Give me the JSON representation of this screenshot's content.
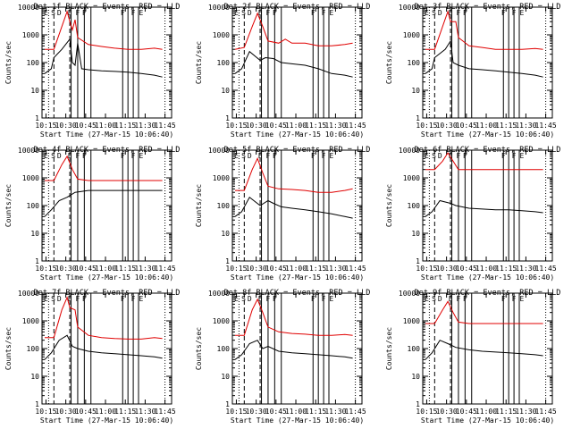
{
  "figure": {
    "shared": {
      "type": "line",
      "ylabel": "Counts/sec",
      "xlabel": "Start Time (27-Mar-15 10:06:40)",
      "x_ticks": [
        "10:15",
        "10:30",
        "10:45",
        "11:00",
        "11:15",
        "11:30",
        "11:45"
      ],
      "y_ticks": [
        "1",
        "10",
        "100",
        "1000",
        "10000"
      ],
      "xlim_minutes_from_start": [
        5,
        103
      ],
      "ylim": [
        1,
        10000
      ],
      "yscale": "log",
      "series_colors": {
        "events": "#000000",
        "lld": "#e00000"
      },
      "marker_letters": [
        "E",
        "S",
        "D",
        "F",
        "F",
        "F",
        "F",
        "F",
        "E"
      ]
    }
  },
  "chart_data": [
    {
      "title": "Det  1f BLACK = Events, RED = LLD",
      "type": "line",
      "series": [
        {
          "key": "events",
          "values": [
            [
              7,
              40
            ],
            [
              12,
              60
            ],
            [
              14,
              150
            ],
            [
              20,
              300
            ],
            [
              26,
              700
            ],
            [
              28,
              100
            ],
            [
              30,
              80
            ],
            [
              32,
              500
            ],
            [
              35,
              60
            ],
            [
              40,
              55
            ],
            [
              50,
              50
            ],
            [
              60,
              48
            ],
            [
              70,
              45
            ],
            [
              80,
              40
            ],
            [
              90,
              35
            ],
            [
              96,
              30
            ]
          ]
        },
        {
          "key": "lld",
          "values": [
            [
              7,
              300
            ],
            [
              14,
              300
            ],
            [
              20,
              2000
            ],
            [
              24,
              7000
            ],
            [
              26,
              3000
            ],
            [
              28,
              1500
            ],
            [
              30,
              3500
            ],
            [
              32,
              800
            ],
            [
              40,
              450
            ],
            [
              50,
              380
            ],
            [
              60,
              330
            ],
            [
              70,
              300
            ],
            [
              80,
              300
            ],
            [
              90,
              330
            ],
            [
              96,
              300
            ]
          ]
        }
      ]
    },
    {
      "title": "Det  2f BLACK = Events, RED = LLD",
      "type": "line",
      "series": [
        {
          "key": "events",
          "values": [
            [
              7,
              40
            ],
            [
              12,
              60
            ],
            [
              18,
              250
            ],
            [
              26,
              120
            ],
            [
              30,
              150
            ],
            [
              36,
              140
            ],
            [
              42,
              100
            ],
            [
              50,
              90
            ],
            [
              60,
              80
            ],
            [
              70,
              60
            ],
            [
              80,
              40
            ],
            [
              90,
              35
            ],
            [
              96,
              30
            ]
          ]
        },
        {
          "key": "lld",
          "values": [
            [
              7,
              300
            ],
            [
              14,
              350
            ],
            [
              20,
              2000
            ],
            [
              24,
              6000
            ],
            [
              28,
              2000
            ],
            [
              32,
              600
            ],
            [
              40,
              500
            ],
            [
              45,
              700
            ],
            [
              50,
              500
            ],
            [
              60,
              500
            ],
            [
              70,
              400
            ],
            [
              80,
              400
            ],
            [
              90,
              450
            ],
            [
              96,
              500
            ]
          ]
        }
      ]
    },
    {
      "title": "Det  3f BLACK = Events, RED = LLD",
      "type": "line",
      "series": [
        {
          "key": "events",
          "values": [
            [
              7,
              40
            ],
            [
              12,
              60
            ],
            [
              14,
              150
            ],
            [
              22,
              300
            ],
            [
              26,
              600
            ],
            [
              28,
              100
            ],
            [
              32,
              80
            ],
            [
              40,
              60
            ],
            [
              50,
              55
            ],
            [
              60,
              50
            ],
            [
              70,
              45
            ],
            [
              80,
              40
            ],
            [
              90,
              35
            ],
            [
              96,
              30
            ]
          ]
        },
        {
          "key": "lld",
          "values": [
            [
              7,
              300
            ],
            [
              14,
              300
            ],
            [
              20,
              2000
            ],
            [
              24,
              7000
            ],
            [
              26,
              3000
            ],
            [
              30,
              3000
            ],
            [
              32,
              800
            ],
            [
              40,
              400
            ],
            [
              50,
              350
            ],
            [
              60,
              300
            ],
            [
              70,
              300
            ],
            [
              80,
              300
            ],
            [
              90,
              320
            ],
            [
              96,
              300
            ]
          ]
        }
      ]
    },
    {
      "title": "Det  4f BLACK = Events, RED = LLD",
      "type": "line",
      "series": [
        {
          "key": "events",
          "values": [
            [
              7,
              40
            ],
            [
              12,
              70
            ],
            [
              18,
              150
            ],
            [
              24,
              200
            ],
            [
              30,
              300
            ],
            [
              40,
              350
            ],
            [
              50,
              350
            ],
            [
              60,
              350
            ],
            [
              70,
              350
            ],
            [
              80,
              350
            ],
            [
              90,
              350
            ],
            [
              96,
              350
            ]
          ]
        },
        {
          "key": "lld",
          "values": [
            [
              7,
              800
            ],
            [
              14,
              800
            ],
            [
              20,
              3000
            ],
            [
              24,
              6000
            ],
            [
              28,
              2000
            ],
            [
              32,
              900
            ],
            [
              40,
              800
            ],
            [
              50,
              800
            ],
            [
              60,
              800
            ],
            [
              70,
              800
            ],
            [
              80,
              800
            ],
            [
              90,
              800
            ],
            [
              96,
              800
            ]
          ]
        }
      ]
    },
    {
      "title": "Det  5f BLACK = Events, RED = LLD",
      "type": "line",
      "series": [
        {
          "key": "events",
          "values": [
            [
              7,
              40
            ],
            [
              12,
              60
            ],
            [
              18,
              200
            ],
            [
              26,
              100
            ],
            [
              32,
              150
            ],
            [
              36,
              120
            ],
            [
              42,
              90
            ],
            [
              50,
              80
            ],
            [
              60,
              70
            ],
            [
              70,
              60
            ],
            [
              80,
              50
            ],
            [
              90,
              40
            ],
            [
              96,
              35
            ]
          ]
        },
        {
          "key": "lld",
          "values": [
            [
              7,
              350
            ],
            [
              14,
              350
            ],
            [
              20,
              2000
            ],
            [
              24,
              5000
            ],
            [
              28,
              1500
            ],
            [
              32,
              500
            ],
            [
              40,
              400
            ],
            [
              50,
              380
            ],
            [
              60,
              350
            ],
            [
              70,
              300
            ],
            [
              80,
              300
            ],
            [
              90,
              350
            ],
            [
              96,
              400
            ]
          ]
        }
      ]
    },
    {
      "title": "Det  6f BLACK = Events, RED = LLD",
      "type": "line",
      "series": [
        {
          "key": "events",
          "values": [
            [
              7,
              40
            ],
            [
              12,
              60
            ],
            [
              18,
              150
            ],
            [
              26,
              120
            ],
            [
              30,
              100
            ],
            [
              40,
              80
            ],
            [
              50,
              75
            ],
            [
              60,
              70
            ],
            [
              70,
              70
            ],
            [
              80,
              65
            ],
            [
              90,
              60
            ],
            [
              96,
              55
            ]
          ]
        },
        {
          "key": "lld",
          "values": [
            [
              7,
              2000
            ],
            [
              14,
              2000
            ],
            [
              20,
              4000
            ],
            [
              24,
              8000
            ],
            [
              28,
              4000
            ],
            [
              32,
              2000
            ],
            [
              40,
              2000
            ],
            [
              50,
              2000
            ],
            [
              60,
              2000
            ],
            [
              70,
              2000
            ],
            [
              80,
              2000
            ],
            [
              90,
              2000
            ],
            [
              96,
              2000
            ]
          ]
        }
      ]
    },
    {
      "title": "Det  7f BLACK = Events, RED = LLD",
      "type": "line",
      "series": [
        {
          "key": "events",
          "values": [
            [
              7,
              40
            ],
            [
              12,
              70
            ],
            [
              18,
              200
            ],
            [
              24,
              300
            ],
            [
              28,
              120
            ],
            [
              32,
              100
            ],
            [
              40,
              80
            ],
            [
              50,
              70
            ],
            [
              60,
              65
            ],
            [
              70,
              60
            ],
            [
              80,
              55
            ],
            [
              90,
              50
            ],
            [
              96,
              45
            ]
          ]
        },
        {
          "key": "lld",
          "values": [
            [
              7,
              250
            ],
            [
              14,
              250
            ],
            [
              20,
              2500
            ],
            [
              24,
              7000
            ],
            [
              26,
              3000
            ],
            [
              30,
              2500
            ],
            [
              32,
              600
            ],
            [
              40,
              300
            ],
            [
              50,
              250
            ],
            [
              60,
              230
            ],
            [
              70,
              220
            ],
            [
              80,
              220
            ],
            [
              90,
              250
            ],
            [
              96,
              230
            ]
          ]
        }
      ]
    },
    {
      "title": "Det  8f BLACK = Events, RED = LLD",
      "type": "line",
      "series": [
        {
          "key": "events",
          "values": [
            [
              7,
              40
            ],
            [
              12,
              60
            ],
            [
              18,
              150
            ],
            [
              24,
              200
            ],
            [
              28,
              100
            ],
            [
              32,
              120
            ],
            [
              40,
              80
            ],
            [
              50,
              70
            ],
            [
              60,
              65
            ],
            [
              70,
              60
            ],
            [
              80,
              55
            ],
            [
              90,
              50
            ],
            [
              96,
              45
            ]
          ]
        },
        {
          "key": "lld",
          "values": [
            [
              7,
              300
            ],
            [
              14,
              300
            ],
            [
              20,
              2500
            ],
            [
              24,
              6000
            ],
            [
              28,
              2000
            ],
            [
              32,
              600
            ],
            [
              40,
              400
            ],
            [
              50,
              350
            ],
            [
              60,
              330
            ],
            [
              70,
              300
            ],
            [
              80,
              300
            ],
            [
              90,
              320
            ],
            [
              96,
              300
            ]
          ]
        }
      ]
    },
    {
      "title": "Det  9f BLACK = Events, RED = LLD",
      "type": "line",
      "series": [
        {
          "key": "events",
          "values": [
            [
              7,
              40
            ],
            [
              12,
              70
            ],
            [
              18,
              200
            ],
            [
              24,
              150
            ],
            [
              30,
              110
            ],
            [
              40,
              90
            ],
            [
              50,
              80
            ],
            [
              60,
              75
            ],
            [
              70,
              70
            ],
            [
              80,
              65
            ],
            [
              90,
              60
            ],
            [
              96,
              55
            ]
          ]
        },
        {
          "key": "lld",
          "values": [
            [
              7,
              800
            ],
            [
              14,
              800
            ],
            [
              20,
              2500
            ],
            [
              24,
              5000
            ],
            [
              28,
              2000
            ],
            [
              32,
              900
            ],
            [
              40,
              800
            ],
            [
              50,
              800
            ],
            [
              60,
              800
            ],
            [
              70,
              800
            ],
            [
              80,
              800
            ],
            [
              90,
              800
            ],
            [
              96,
              800
            ]
          ]
        }
      ]
    }
  ]
}
